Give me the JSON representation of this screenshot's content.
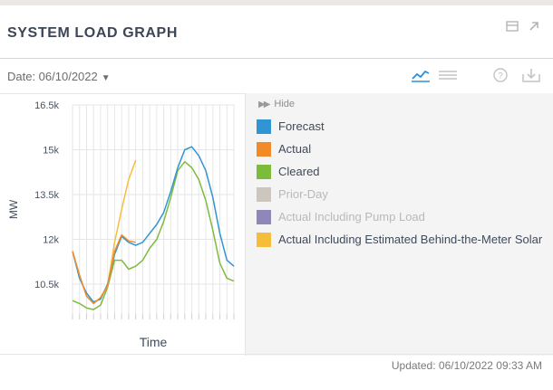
{
  "header": {
    "title": "SYSTEM LOAD GRAPH",
    "icons": [
      "window-icon",
      "expand-icon"
    ]
  },
  "toolbar": {
    "date_label": "Date: 06/10/2022",
    "icons": [
      "line-chart-icon",
      "table-icon",
      "help-icon",
      "download-icon"
    ]
  },
  "legend": {
    "hide_label": "Hide",
    "items": [
      {
        "label": "Forecast",
        "color": "#2f95d3",
        "dim": false
      },
      {
        "label": "Actual",
        "color": "#f38a2a",
        "dim": false
      },
      {
        "label": "Cleared",
        "color": "#7dbb3a",
        "dim": false
      },
      {
        "label": "Prior-Day",
        "color": "#cdc6bf",
        "dim": true
      },
      {
        "label": "Actual Including Pump Load",
        "color": "#9186b8",
        "dim": true
      },
      {
        "label": "Actual Including Estimated Behind-the-Meter Solar",
        "color": "#f4be3a",
        "dim": false
      }
    ]
  },
  "footer": {
    "updated": "Updated: 06/10/2022 09:33 AM"
  },
  "chart_data": {
    "type": "line",
    "title": "",
    "xlabel": "Time",
    "ylabel": "MW",
    "ylim": [
      9500,
      16500
    ],
    "yticks": [
      10500,
      12000,
      13500,
      15000,
      16500
    ],
    "ytick_labels": [
      "10.5k",
      "12k",
      "13.5k",
      "15k",
      "16.5k"
    ],
    "grid": true,
    "series": [
      {
        "name": "Forecast",
        "color": "#2f95d3",
        "x": [
          0,
          1,
          2,
          3,
          4,
          5,
          6,
          7,
          8,
          9,
          10,
          11,
          12,
          13,
          14,
          15,
          16,
          17,
          18,
          19,
          20,
          21,
          22,
          23
        ],
        "y": [
          11600,
          10700,
          10200,
          9900,
          10000,
          10500,
          11500,
          12100,
          11900,
          11800,
          11900,
          12200,
          12500,
          12900,
          13600,
          14400,
          15000,
          15100,
          14800,
          14300,
          13400,
          12200,
          11300,
          11100
        ]
      },
      {
        "name": "Actual",
        "color": "#f38a2a",
        "x": [
          0,
          1,
          2,
          3,
          4,
          5,
          6,
          7,
          8,
          9
        ],
        "y": [
          11600,
          10800,
          10100,
          9850,
          10050,
          10450,
          11600,
          12150,
          11950,
          11900
        ]
      },
      {
        "name": "Cleared",
        "color": "#7dbb3a",
        "x": [
          0,
          1,
          2,
          3,
          4,
          5,
          6,
          7,
          8,
          9,
          10,
          11,
          12,
          13,
          14,
          15,
          16,
          17,
          18,
          19,
          20,
          21,
          22,
          23
        ],
        "y": [
          9950,
          9850,
          9700,
          9650,
          9800,
          10400,
          11300,
          11300,
          11000,
          11100,
          11300,
          11700,
          12000,
          12600,
          13400,
          14300,
          14600,
          14400,
          14000,
          13300,
          12300,
          11200,
          10700,
          10600
        ]
      },
      {
        "name": "Actual Including Estimated Behind-the-Meter Solar",
        "color": "#f4be3a",
        "x": [
          0,
          1,
          2,
          3,
          4,
          5,
          6,
          7,
          8,
          9
        ],
        "y": [
          11600,
          10800,
          10100,
          9850,
          10050,
          10450,
          11900,
          13000,
          14000,
          14650
        ]
      }
    ]
  }
}
